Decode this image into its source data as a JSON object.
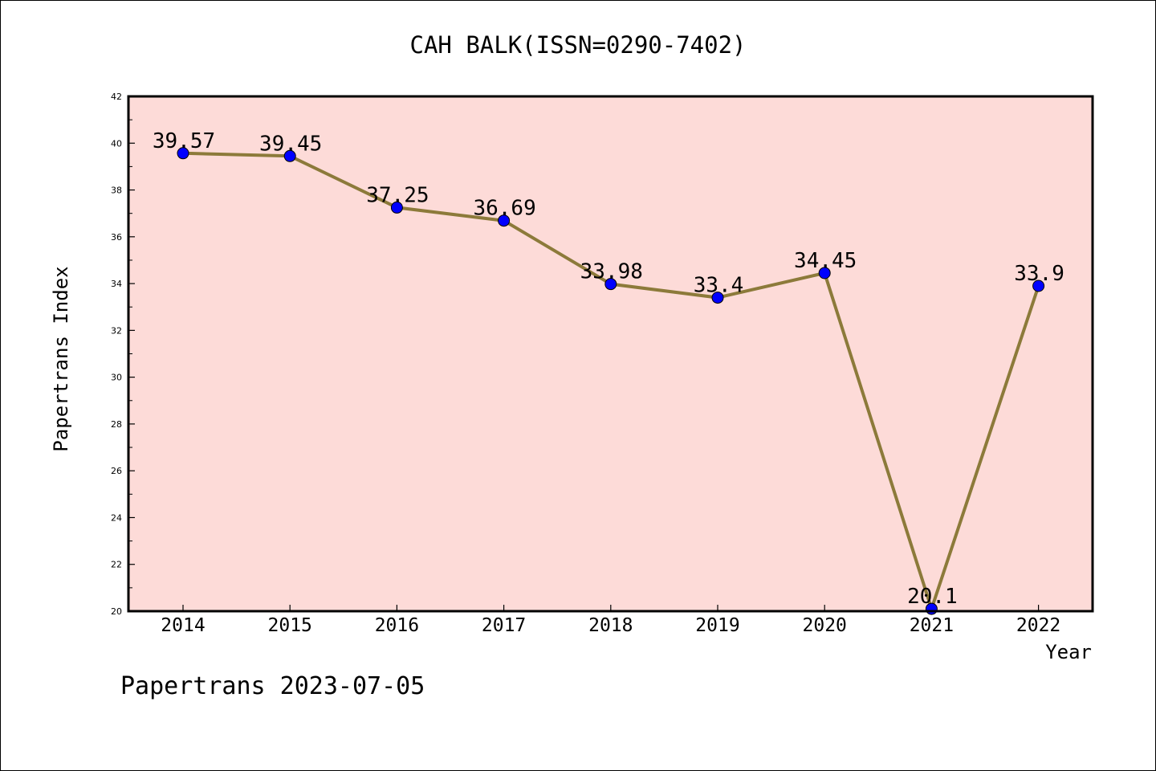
{
  "chart_data": {
    "type": "line",
    "title": "CAH BALK(ISSN=0290-7402)",
    "xlabel": "Year",
    "ylabel": "Papertrans Index",
    "footer": "Papertrans 2023-07-05",
    "categories": [
      "2014",
      "2015",
      "2016",
      "2017",
      "2018",
      "2019",
      "2020",
      "2021",
      "2022"
    ],
    "series": [
      {
        "values": [
          39.57,
          39.45,
          37.25,
          36.69,
          33.98,
          33.4,
          34.45,
          20.1,
          33.9
        ],
        "labels": [
          "39.57",
          "39.45",
          "37.25",
          "36.69",
          "33.98",
          "33.4",
          "34.45",
          "20.1",
          "33.9"
        ]
      }
    ],
    "ylim": [
      20,
      42
    ],
    "yticks": [
      "20",
      "22",
      "24",
      "26",
      "28",
      "30",
      "32",
      "34",
      "36",
      "38",
      "40",
      "42"
    ],
    "grid": false,
    "colors": {
      "plot_background": "#fddbd8",
      "line": "#8c7a3a",
      "marker": "#0000ff"
    }
  }
}
